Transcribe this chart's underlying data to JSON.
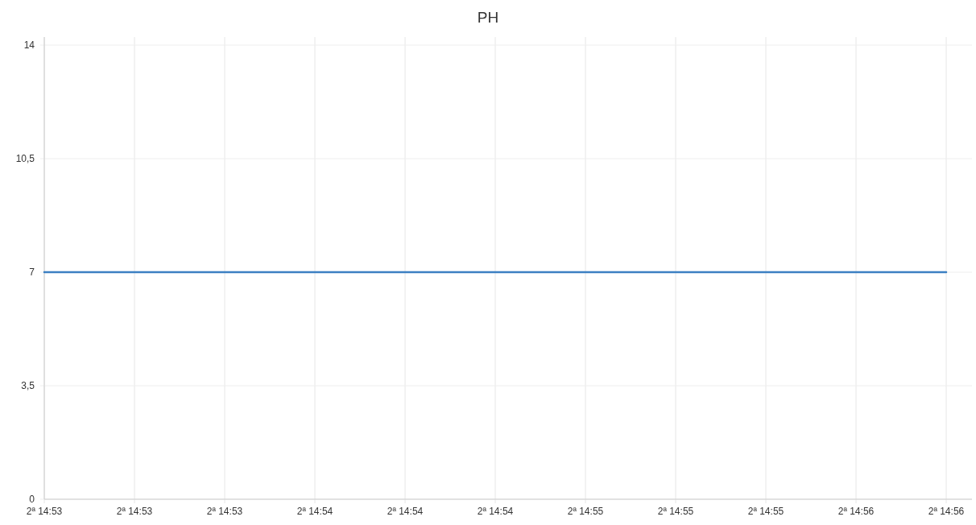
{
  "chart_data": {
    "type": "line",
    "title": "PH",
    "categories": [
      "2ª 14:53",
      "2ª 14:53",
      "2ª 14:53",
      "2ª 14:54",
      "2ª 14:54",
      "2ª 14:54",
      "2ª 14:55",
      "2ª 14:55",
      "2ª 14:55",
      "2ª 14:56",
      "2ª 14:56"
    ],
    "series": [
      {
        "color": "#3c80c2",
        "values": [
          7,
          7,
          7,
          7,
          7,
          7,
          7,
          7,
          7,
          7,
          7
        ]
      }
    ],
    "ylim": [
      0,
      14
    ],
    "yticks": [
      0,
      {
        "value": 3.5,
        "label": "3,5"
      },
      7,
      {
        "value": 10.5,
        "label": "10,5"
      },
      14
    ],
    "grid": true,
    "marker": "none",
    "line_style": "solid"
  }
}
